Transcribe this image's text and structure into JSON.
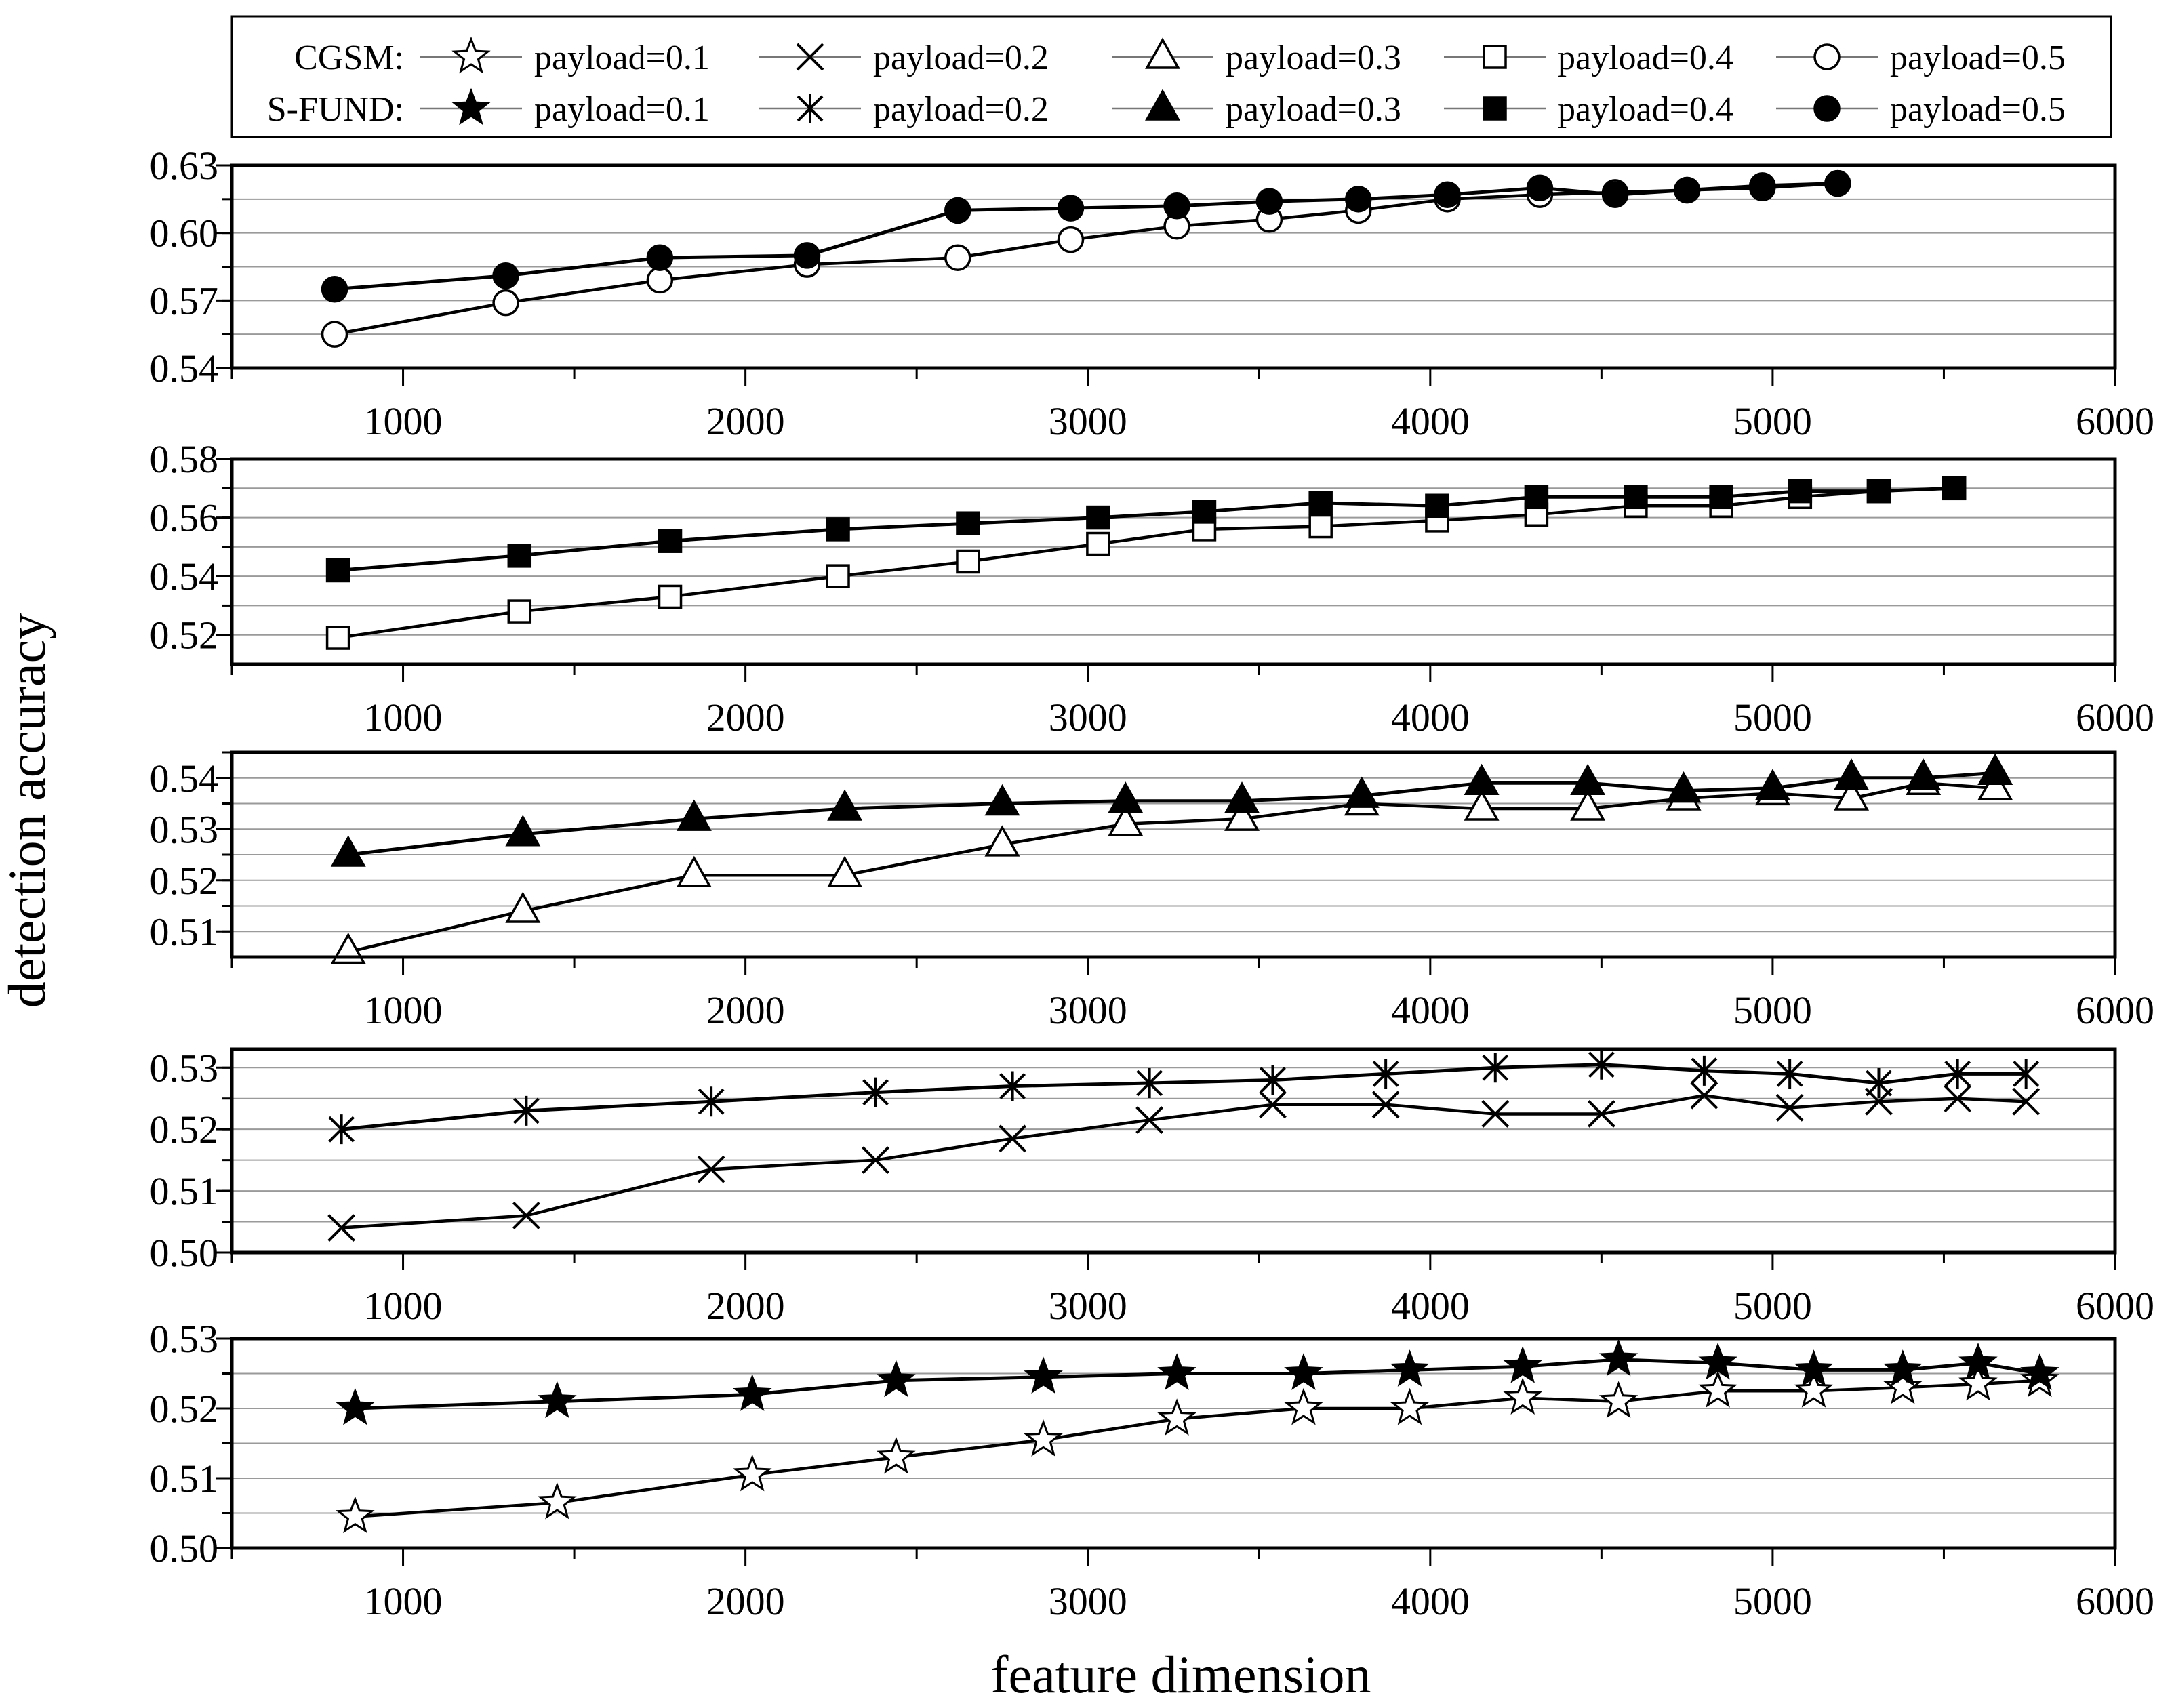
{
  "chart_data": {
    "type": "line",
    "xlabel": "feature dimension",
    "ylabel": "detection accuracy",
    "xlim": [
      500,
      6000
    ],
    "xticks": [
      1000,
      2000,
      3000,
      4000,
      5000,
      6000
    ],
    "grid": true,
    "legend": {
      "position": "top",
      "rows": [
        {
          "label": "CGSM:",
          "entries": [
            {
              "label": "payload=0.1",
              "marker": "star-open"
            },
            {
              "label": "payload=0.2",
              "marker": "x"
            },
            {
              "label": "payload=0.3",
              "marker": "triangle-open"
            },
            {
              "label": "payload=0.4",
              "marker": "square-open"
            },
            {
              "label": "payload=0.5",
              "marker": "circle-open"
            }
          ]
        },
        {
          "label": "S-FUND:",
          "entries": [
            {
              "label": "payload=0.1",
              "marker": "star-filled"
            },
            {
              "label": "payload=0.2",
              "marker": "asterisk"
            },
            {
              "label": "payload=0.3",
              "marker": "triangle-filled"
            },
            {
              "label": "payload=0.4",
              "marker": "square-filled"
            },
            {
              "label": "payload=0.5",
              "marker": "circle-filled"
            }
          ]
        }
      ]
    },
    "panels": [
      {
        "payload": "0.5",
        "ylim": [
          0.54,
          0.63
        ],
        "yticks": [
          0.54,
          0.57,
          0.6,
          0.63
        ],
        "ytick_labels": [
          "0.54",
          "0.57",
          "0.60",
          "0.63"
        ],
        "series": [
          {
            "name": "CGSM payload=0.5",
            "marker": "circle-open",
            "x": [
              800,
              1300,
              1750,
              2180,
              2620,
              2950,
              3260,
              3530,
              3790,
              4050,
              4320,
              4540,
              4750,
              4970,
              5190
            ],
            "y": [
              0.555,
              0.569,
              0.579,
              0.586,
              0.589,
              0.597,
              0.603,
              0.606,
              0.61,
              0.615,
              0.617,
              0.618,
              0.619,
              0.62,
              0.622
            ]
          },
          {
            "name": "S-FUND payload=0.5",
            "marker": "circle-filled",
            "x": [
              800,
              1300,
              1750,
              2180,
              2620,
              2950,
              3260,
              3530,
              3790,
              4050,
              4320,
              4540,
              4750,
              4970,
              5190
            ],
            "y": [
              0.575,
              0.581,
              0.589,
              0.59,
              0.61,
              0.611,
              0.612,
              0.614,
              0.615,
              0.617,
              0.62,
              0.617,
              0.619,
              0.621,
              0.622
            ]
          }
        ]
      },
      {
        "payload": "0.4",
        "ylim": [
          0.51,
          0.58
        ],
        "yticks": [
          0.52,
          0.54,
          0.56,
          0.58
        ],
        "ytick_labels": [
          "0.52",
          "0.54",
          "0.56",
          "0.58"
        ],
        "series": [
          {
            "name": "CGSM payload=0.4",
            "marker": "square-open",
            "x": [
              810,
              1340,
              1780,
              2270,
              2650,
              3030,
              3340,
              3680,
              4020,
              4310,
              4600,
              4850,
              5080,
              5310,
              5530
            ],
            "y": [
              0.519,
              0.528,
              0.533,
              0.54,
              0.545,
              0.551,
              0.556,
              0.557,
              0.559,
              0.561,
              0.564,
              0.564,
              0.567,
              0.569,
              0.57
            ]
          },
          {
            "name": "S-FUND payload=0.4",
            "marker": "square-filled",
            "x": [
              810,
              1340,
              1780,
              2270,
              2650,
              3030,
              3340,
              3680,
              4020,
              4310,
              4600,
              4850,
              5080,
              5310,
              5530
            ],
            "y": [
              0.542,
              0.547,
              0.552,
              0.556,
              0.558,
              0.56,
              0.562,
              0.565,
              0.564,
              0.567,
              0.567,
              0.567,
              0.569,
              0.569,
              0.57
            ]
          }
        ]
      },
      {
        "payload": "0.3",
        "ylim": [
          0.505,
          0.545
        ],
        "yticks": [
          0.51,
          0.52,
          0.53,
          0.54
        ],
        "ytick_labels": [
          "0.51",
          "0.52",
          "0.53",
          "0.54"
        ],
        "series": [
          {
            "name": "CGSM payload=0.3",
            "marker": "triangle-open",
            "x": [
              840,
              1350,
              1850,
              2290,
              2750,
              3110,
              3450,
              3800,
              4150,
              4460,
              4740,
              5000,
              5230,
              5440,
              5650
            ],
            "y": [
              0.506,
              0.514,
              0.521,
              0.521,
              0.527,
              0.531,
              0.532,
              0.535,
              0.534,
              0.534,
              0.536,
              0.537,
              0.536,
              0.539,
              0.538
            ]
          },
          {
            "name": "S-FUND payload=0.3",
            "marker": "triangle-filled",
            "x": [
              840,
              1350,
              1850,
              2290,
              2750,
              3110,
              3450,
              3800,
              4150,
              4460,
              4740,
              5000,
              5230,
              5440,
              5650
            ],
            "y": [
              0.525,
              0.529,
              0.532,
              0.534,
              0.535,
              0.5355,
              0.5355,
              0.5365,
              0.539,
              0.539,
              0.5375,
              0.538,
              0.54,
              0.54,
              0.541
            ]
          }
        ]
      },
      {
        "payload": "0.2",
        "ylim": [
          0.5,
          0.533
        ],
        "yticks": [
          0.5,
          0.51,
          0.52,
          0.53
        ],
        "ytick_labels": [
          "0.50",
          "0.51",
          "0.52",
          "0.53"
        ],
        "series": [
          {
            "name": "CGSM payload=0.2",
            "marker": "x",
            "x": [
              820,
              1360,
              1900,
              2380,
              2780,
              3180,
              3540,
              3870,
              4190,
              4500,
              4800,
              5050,
              5310,
              5540,
              5740
            ],
            "y": [
              0.504,
              0.506,
              0.5135,
              0.515,
              0.5185,
              0.5215,
              0.524,
              0.524,
              0.5225,
              0.5225,
              0.5255,
              0.5235,
              0.5245,
              0.525,
              0.5245
            ]
          },
          {
            "name": "S-FUND payload=0.2",
            "marker": "asterisk",
            "x": [
              820,
              1360,
              1900,
              2380,
              2780,
              3180,
              3540,
              3870,
              4190,
              4500,
              4800,
              5050,
              5310,
              5540,
              5740
            ],
            "y": [
              0.52,
              0.523,
              0.5245,
              0.526,
              0.527,
              0.5275,
              0.528,
              0.529,
              0.53,
              0.5305,
              0.5295,
              0.529,
              0.5275,
              0.529,
              0.529
            ]
          }
        ]
      },
      {
        "payload": "0.1",
        "ylim": [
          0.5,
          0.53
        ],
        "yticks": [
          0.5,
          0.51,
          0.52,
          0.53
        ],
        "ytick_labels": [
          "0.50",
          "0.51",
          "0.52",
          "0.53"
        ],
        "series": [
          {
            "name": "CGSM payload=0.1",
            "marker": "star-open",
            "x": [
              860,
              1450,
              2020,
              2440,
              2870,
              3260,
              3630,
              3940,
              4270,
              4550,
              4840,
              5120,
              5380,
              5600,
              5780
            ],
            "y": [
              0.5045,
              0.5065,
              0.5105,
              0.513,
              0.5155,
              0.5185,
              0.52,
              0.52,
              0.5215,
              0.521,
              0.5225,
              0.5225,
              0.523,
              0.5235,
              0.524
            ]
          },
          {
            "name": "S-FUND payload=0.1",
            "marker": "star-filled",
            "x": [
              860,
              1450,
              2020,
              2440,
              2870,
              3260,
              3630,
              3940,
              4270,
              4550,
              4840,
              5120,
              5380,
              5600,
              5780
            ],
            "y": [
              0.52,
              0.521,
              0.522,
              0.524,
              0.5245,
              0.525,
              0.525,
              0.5255,
              0.526,
              0.527,
              0.5265,
              0.5255,
              0.5255,
              0.5265,
              0.525
            ]
          }
        ]
      }
    ]
  }
}
